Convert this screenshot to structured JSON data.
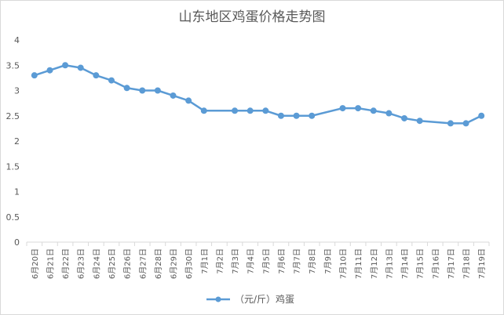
{
  "chart_data": {
    "type": "line",
    "title": "山东地区鸡蛋价格走势图",
    "categories": [
      "6月20日",
      "6月21日",
      "6月22日",
      "6月23日",
      "6月24日",
      "6月25日",
      "6月26日",
      "6月27日",
      "6月28日",
      "6月29日",
      "6月30日",
      "7月1日",
      "7月2日",
      "7月3日",
      "7月4日",
      "7月5日",
      "7月6日",
      "7月7日",
      "7月8日",
      "7月9日",
      "7月10日",
      "7月11日",
      "7月12日",
      "7月13日",
      "7月14日",
      "7月15日",
      "7月16日",
      "7月17日",
      "7月18日",
      "7月19日"
    ],
    "series": [
      {
        "name": "（元/斤）鸡蛋",
        "color": "#5b9bd5",
        "values": [
          3.3,
          3.4,
          3.5,
          3.45,
          3.3,
          3.2,
          3.05,
          3.0,
          3.0,
          2.9,
          2.8,
          2.6,
          null,
          2.6,
          2.6,
          2.6,
          2.5,
          2.5,
          2.5,
          null,
          2.65,
          2.65,
          2.6,
          2.55,
          2.45,
          2.4,
          null,
          2.35,
          2.35,
          2.5
        ]
      }
    ],
    "ylim": [
      0,
      4
    ],
    "yticks": [
      "0",
      "0.5",
      "1",
      "1.5",
      "2",
      "2.5",
      "3",
      "3.5",
      "4"
    ],
    "grid": false,
    "legend_position": "bottom"
  }
}
